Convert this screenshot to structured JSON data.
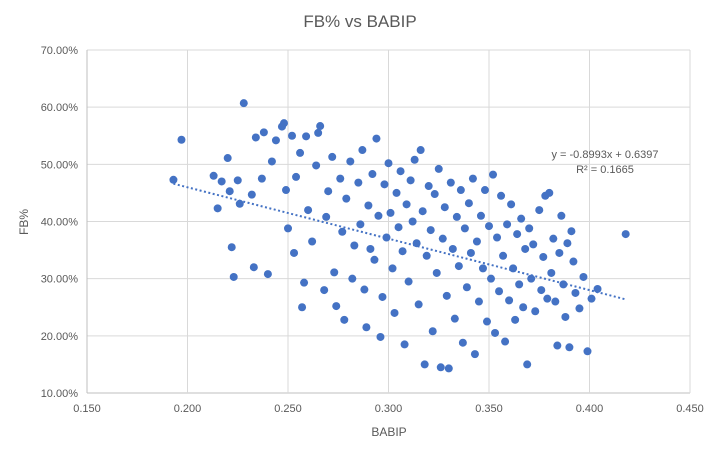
{
  "chart_data": {
    "type": "scatter",
    "title": "FB% vs BABIP",
    "xlabel": "BABIP",
    "ylabel": "FB%",
    "xlim": [
      0.15,
      0.45
    ],
    "ylim": [
      0.1,
      0.7
    ],
    "x_ticks": [
      "0.150",
      "0.200",
      "0.250",
      "0.300",
      "0.350",
      "0.400",
      "0.450"
    ],
    "y_ticks": [
      "10.00%",
      "20.00%",
      "30.00%",
      "40.00%",
      "50.00%",
      "60.00%",
      "70.00%"
    ],
    "grid": "vertical and horizontal major gridlines",
    "legend": "none",
    "marker_color": "#4472c4",
    "trendline": {
      "type": "linear",
      "slope": -0.8993,
      "intercept": 0.6397,
      "x_range": [
        0.193,
        0.418
      ],
      "equation_label": "y = -0.8993x + 0.6397",
      "r_squared_label": "R² = 0.1665",
      "style": "dotted"
    },
    "series": [
      {
        "points": [
          [
            0.193,
            0.473
          ],
          [
            0.197,
            0.543
          ],
          [
            0.213,
            0.48
          ],
          [
            0.215,
            0.423
          ],
          [
            0.217,
            0.47
          ],
          [
            0.22,
            0.511
          ],
          [
            0.221,
            0.453
          ],
          [
            0.222,
            0.355
          ],
          [
            0.223,
            0.303
          ],
          [
            0.225,
            0.472
          ],
          [
            0.226,
            0.431
          ],
          [
            0.228,
            0.607
          ],
          [
            0.232,
            0.447
          ],
          [
            0.233,
            0.32
          ],
          [
            0.234,
            0.547
          ],
          [
            0.237,
            0.475
          ],
          [
            0.238,
            0.556
          ],
          [
            0.24,
            0.308
          ],
          [
            0.242,
            0.505
          ],
          [
            0.244,
            0.542
          ],
          [
            0.247,
            0.566
          ],
          [
            0.248,
            0.572
          ],
          [
            0.249,
            0.455
          ],
          [
            0.25,
            0.388
          ],
          [
            0.252,
            0.55
          ],
          [
            0.253,
            0.345
          ],
          [
            0.254,
            0.478
          ],
          [
            0.256,
            0.52
          ],
          [
            0.257,
            0.25
          ],
          [
            0.258,
            0.293
          ],
          [
            0.259,
            0.549
          ],
          [
            0.26,
            0.42
          ],
          [
            0.262,
            0.365
          ],
          [
            0.264,
            0.498
          ],
          [
            0.265,
            0.555
          ],
          [
            0.266,
            0.567
          ],
          [
            0.268,
            0.28
          ],
          [
            0.269,
            0.408
          ],
          [
            0.27,
            0.453
          ],
          [
            0.272,
            0.513
          ],
          [
            0.273,
            0.311
          ],
          [
            0.274,
            0.252
          ],
          [
            0.276,
            0.475
          ],
          [
            0.277,
            0.382
          ],
          [
            0.278,
            0.228
          ],
          [
            0.279,
            0.44
          ],
          [
            0.281,
            0.505
          ],
          [
            0.282,
            0.3
          ],
          [
            0.283,
            0.358
          ],
          [
            0.285,
            0.468
          ],
          [
            0.286,
            0.395
          ],
          [
            0.287,
            0.525
          ],
          [
            0.288,
            0.281
          ],
          [
            0.289,
            0.215
          ],
          [
            0.29,
            0.428
          ],
          [
            0.291,
            0.352
          ],
          [
            0.292,
            0.483
          ],
          [
            0.293,
            0.333
          ],
          [
            0.294,
            0.545
          ],
          [
            0.295,
            0.41
          ],
          [
            0.296,
            0.198
          ],
          [
            0.297,
            0.268
          ],
          [
            0.298,
            0.465
          ],
          [
            0.299,
            0.372
          ],
          [
            0.3,
            0.502
          ],
          [
            0.301,
            0.415
          ],
          [
            0.302,
            0.318
          ],
          [
            0.303,
            0.24
          ],
          [
            0.304,
            0.45
          ],
          [
            0.305,
            0.39
          ],
          [
            0.306,
            0.488
          ],
          [
            0.307,
            0.348
          ],
          [
            0.308,
            0.185
          ],
          [
            0.309,
            0.43
          ],
          [
            0.31,
            0.295
          ],
          [
            0.311,
            0.472
          ],
          [
            0.312,
            0.4
          ],
          [
            0.313,
            0.508
          ],
          [
            0.314,
            0.362
          ],
          [
            0.315,
            0.255
          ],
          [
            0.316,
            0.525
          ],
          [
            0.317,
            0.418
          ],
          [
            0.318,
            0.15
          ],
          [
            0.319,
            0.34
          ],
          [
            0.32,
            0.462
          ],
          [
            0.321,
            0.385
          ],
          [
            0.322,
            0.208
          ],
          [
            0.323,
            0.448
          ],
          [
            0.324,
            0.31
          ],
          [
            0.325,
            0.492
          ],
          [
            0.326,
            0.145
          ],
          [
            0.327,
            0.37
          ],
          [
            0.328,
            0.425
          ],
          [
            0.329,
            0.27
          ],
          [
            0.33,
            0.143
          ],
          [
            0.331,
            0.468
          ],
          [
            0.332,
            0.352
          ],
          [
            0.333,
            0.23
          ],
          [
            0.334,
            0.408
          ],
          [
            0.335,
            0.322
          ],
          [
            0.336,
            0.455
          ],
          [
            0.337,
            0.188
          ],
          [
            0.338,
            0.388
          ],
          [
            0.339,
            0.285
          ],
          [
            0.34,
            0.432
          ],
          [
            0.341,
            0.345
          ],
          [
            0.342,
            0.475
          ],
          [
            0.343,
            0.168
          ],
          [
            0.344,
            0.365
          ],
          [
            0.345,
            0.26
          ],
          [
            0.346,
            0.41
          ],
          [
            0.347,
            0.318
          ],
          [
            0.348,
            0.455
          ],
          [
            0.349,
            0.225
          ],
          [
            0.35,
            0.392
          ],
          [
            0.351,
            0.3
          ],
          [
            0.352,
            0.482
          ],
          [
            0.353,
            0.205
          ],
          [
            0.354,
            0.372
          ],
          [
            0.355,
            0.278
          ],
          [
            0.356,
            0.445
          ],
          [
            0.357,
            0.34
          ],
          [
            0.358,
            0.19
          ],
          [
            0.359,
            0.395
          ],
          [
            0.36,
            0.262
          ],
          [
            0.361,
            0.43
          ],
          [
            0.362,
            0.318
          ],
          [
            0.363,
            0.228
          ],
          [
            0.364,
            0.378
          ],
          [
            0.365,
            0.29
          ],
          [
            0.366,
            0.405
          ],
          [
            0.367,
            0.25
          ],
          [
            0.368,
            0.352
          ],
          [
            0.369,
            0.15
          ],
          [
            0.37,
            0.388
          ],
          [
            0.371,
            0.3
          ],
          [
            0.372,
            0.36
          ],
          [
            0.373,
            0.243
          ],
          [
            0.375,
            0.42
          ],
          [
            0.376,
            0.28
          ],
          [
            0.377,
            0.338
          ],
          [
            0.378,
            0.445
          ],
          [
            0.379,
            0.265
          ],
          [
            0.38,
            0.45
          ],
          [
            0.381,
            0.31
          ],
          [
            0.382,
            0.37
          ],
          [
            0.383,
            0.26
          ],
          [
            0.384,
            0.183
          ],
          [
            0.385,
            0.345
          ],
          [
            0.386,
            0.41
          ],
          [
            0.387,
            0.29
          ],
          [
            0.388,
            0.233
          ],
          [
            0.389,
            0.362
          ],
          [
            0.39,
            0.18
          ],
          [
            0.391,
            0.383
          ],
          [
            0.392,
            0.33
          ],
          [
            0.393,
            0.275
          ],
          [
            0.395,
            0.248
          ],
          [
            0.397,
            0.303
          ],
          [
            0.399,
            0.173
          ],
          [
            0.401,
            0.265
          ],
          [
            0.404,
            0.282
          ],
          [
            0.418,
            0.378
          ]
        ]
      }
    ]
  }
}
